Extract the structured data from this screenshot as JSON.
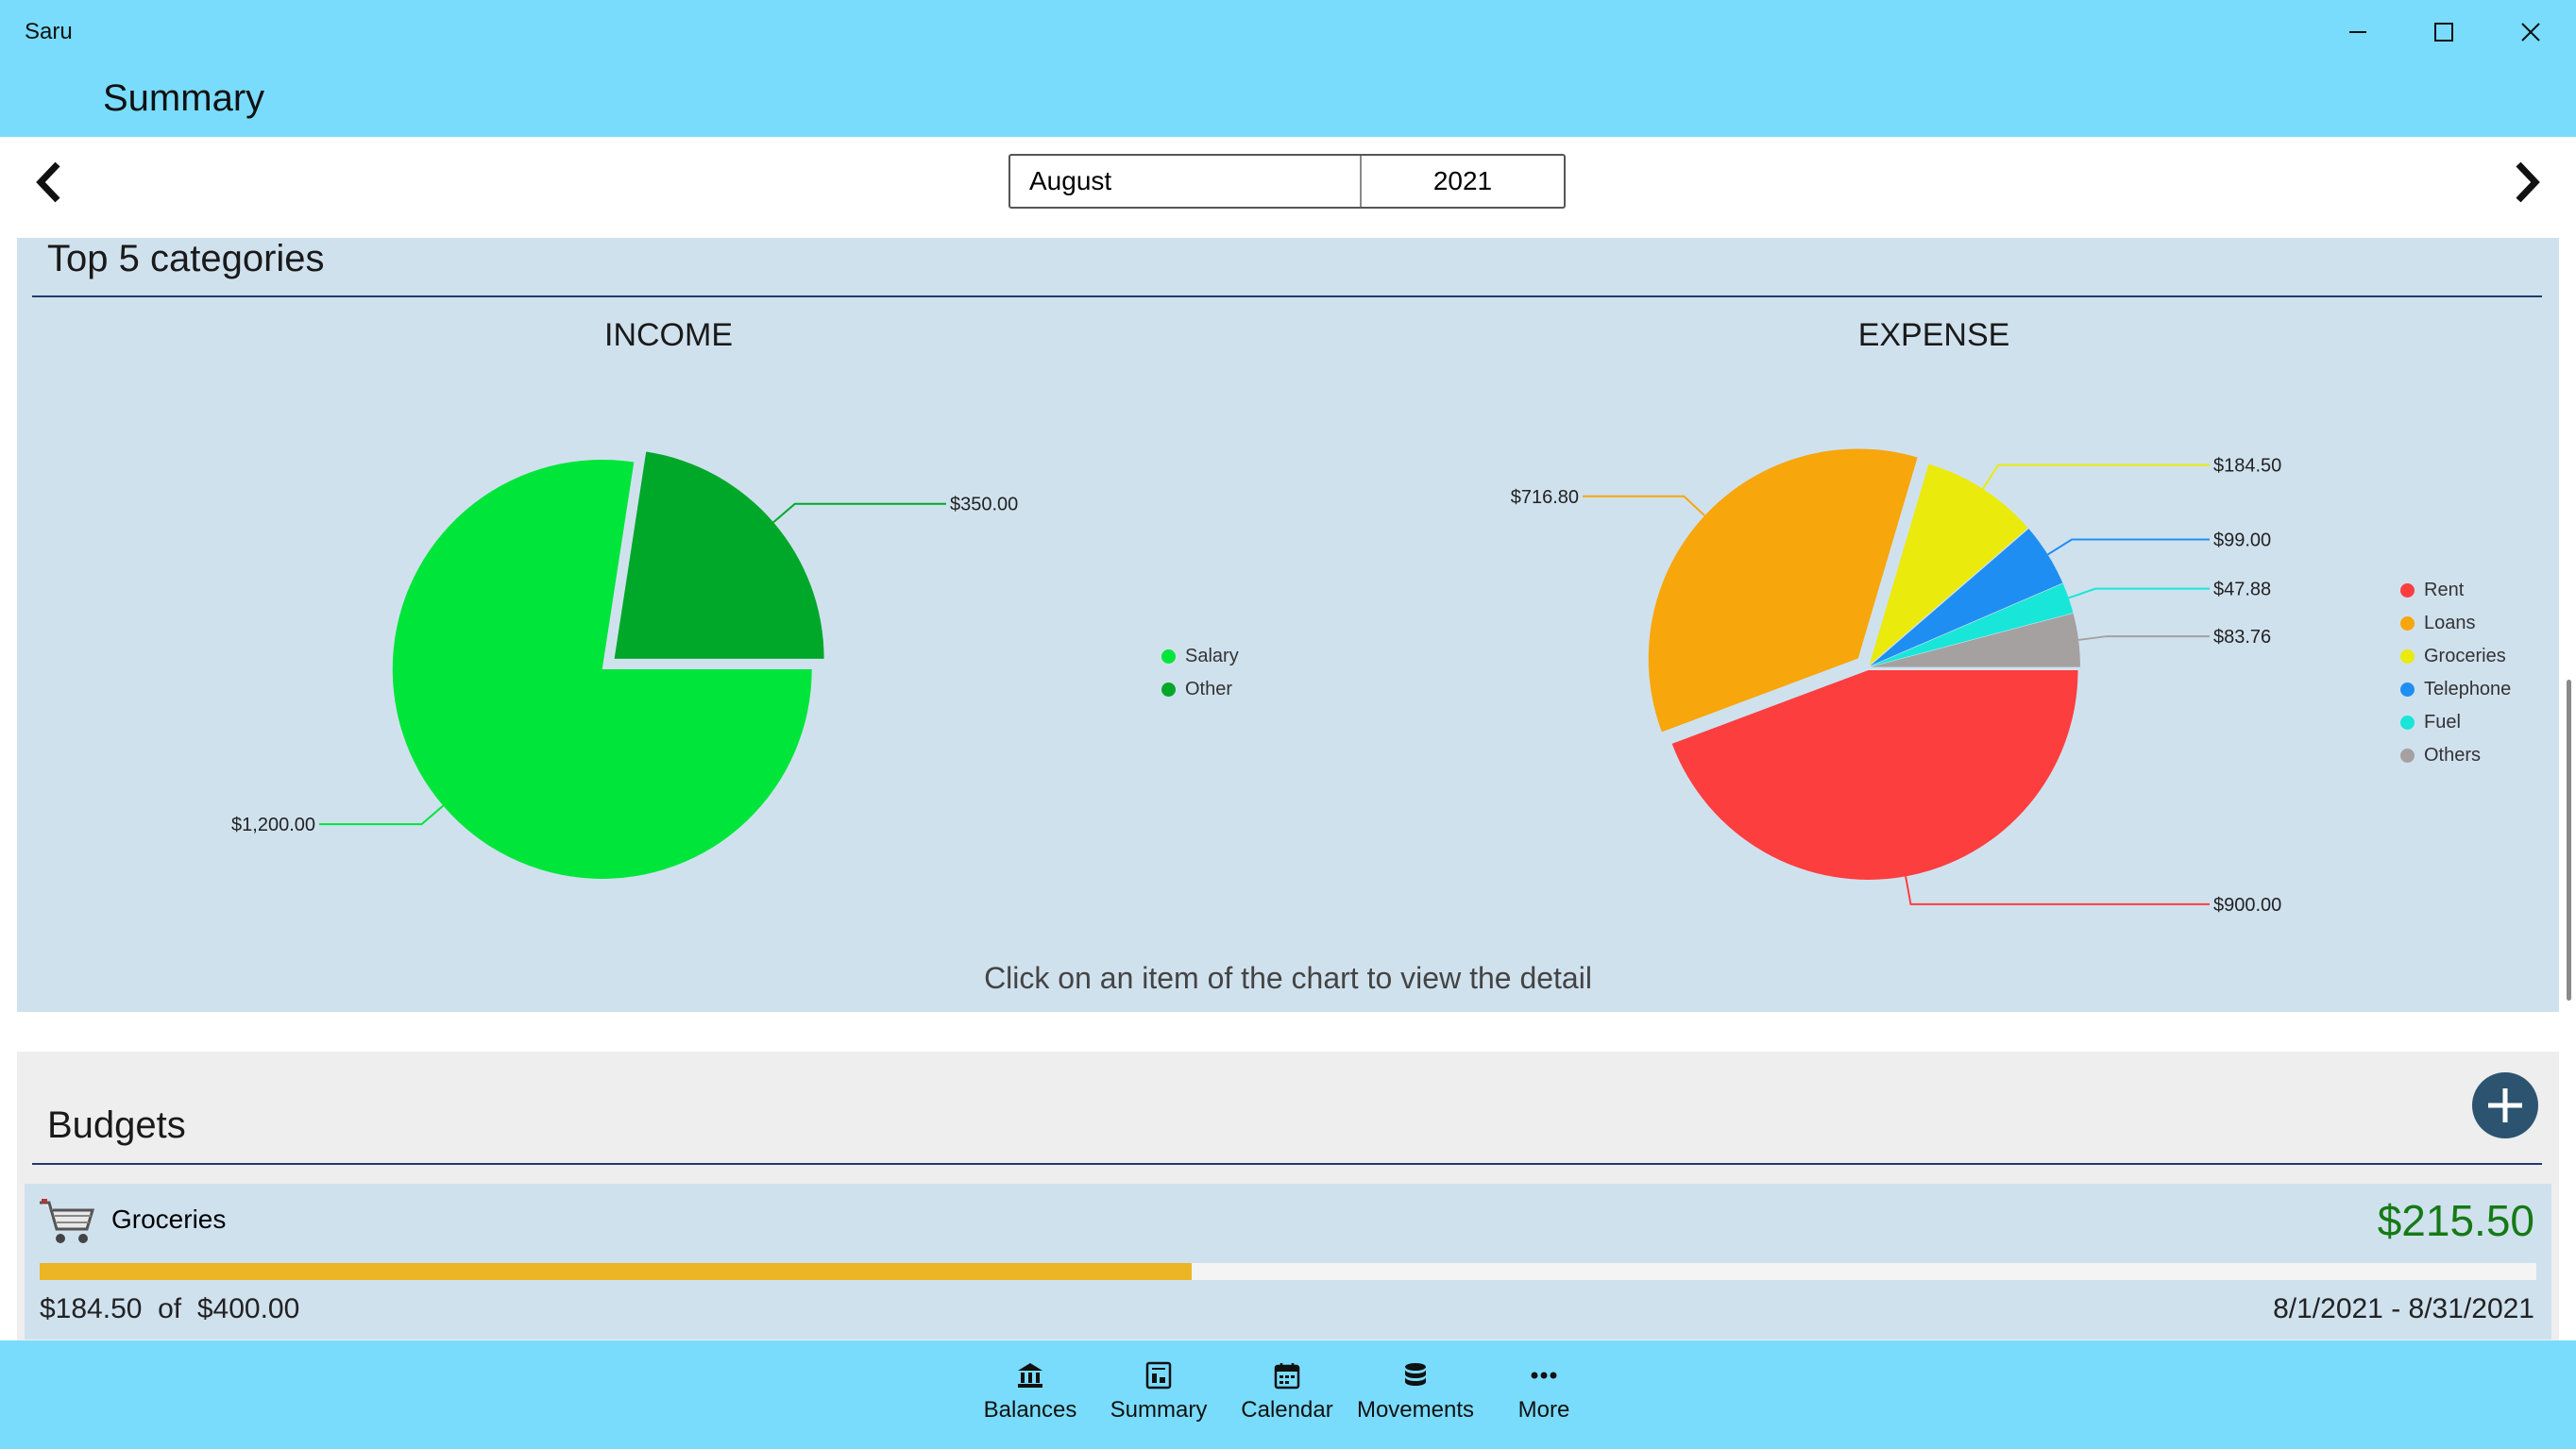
{
  "window": {
    "app_name": "Saru"
  },
  "header": {
    "title": "Summary"
  },
  "period": {
    "month": "August",
    "year": "2021"
  },
  "top5": {
    "section_title": "Top 5 categories",
    "hint": "Click on an item of the chart to view the detail",
    "income": {
      "title": "INCOME",
      "slices": [
        {
          "name": "Salary",
          "label": "$1,200.00",
          "value": 1200.0,
          "color": "#00e53a"
        },
        {
          "name": "Other",
          "label": "$350.00",
          "value": 350.0,
          "color": "#00a82a"
        }
      ]
    },
    "expense": {
      "title": "EXPENSE",
      "slices": [
        {
          "name": "Rent",
          "label": "$900.00",
          "value": 900.0,
          "color": "#fc3e3e"
        },
        {
          "name": "Loans",
          "label": "$716.80",
          "value": 716.8,
          "color": "#f7a60c"
        },
        {
          "name": "Groceries",
          "label": "$184.50",
          "value": 184.5,
          "color": "#eaea0c"
        },
        {
          "name": "Telephone",
          "label": "$99.00",
          "value": 99.0,
          "color": "#1f8ef2"
        },
        {
          "name": "Fuel",
          "label": "$47.88",
          "value": 47.88,
          "color": "#18e6d8"
        },
        {
          "name": "Others",
          "label": "$83.76",
          "value": 83.76,
          "color": "#a5a1a1"
        }
      ]
    }
  },
  "chart_data": [
    {
      "type": "pie",
      "title": "INCOME",
      "categories": [
        "Salary",
        "Other"
      ],
      "values": [
        1200.0,
        350.0
      ],
      "legend": "right"
    },
    {
      "type": "pie",
      "title": "EXPENSE",
      "categories": [
        "Rent",
        "Loans",
        "Groceries",
        "Telephone",
        "Fuel",
        "Others"
      ],
      "values": [
        900.0,
        716.8,
        184.5,
        99.0,
        47.88,
        83.76
      ],
      "legend": "right"
    }
  ],
  "budgets": {
    "section_title": "Budgets",
    "items": [
      {
        "name": "Groceries",
        "icon": "cart-icon",
        "remaining": "$215.50",
        "spent": "$184.50",
        "of_text": "of",
        "total": "$400.00",
        "progress_fraction": 0.46125,
        "date_range": "8/1/2021 - 8/31/2021"
      }
    ]
  },
  "bottom_nav": [
    {
      "label": "Balances",
      "icon": "bank-icon"
    },
    {
      "label": "Summary",
      "icon": "summary-icon"
    },
    {
      "label": "Calendar",
      "icon": "calendar-icon"
    },
    {
      "label": "Movements",
      "icon": "database-icon"
    },
    {
      "label": "More",
      "icon": "more-icon"
    }
  ]
}
